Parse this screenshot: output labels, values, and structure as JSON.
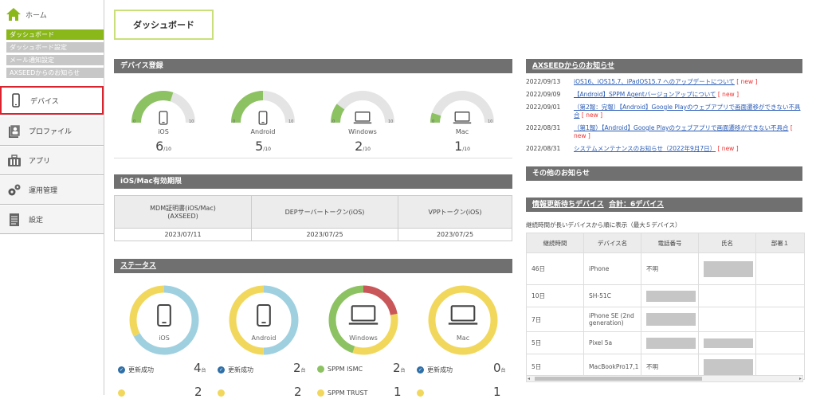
{
  "sidebar": {
    "home": "ホーム",
    "subnav": [
      "ダッシュボード",
      "ダッシュボード設定",
      "メール通知設定",
      "AXSEEDからのお知らせ"
    ],
    "menu": [
      "デバイス",
      "プロファイル",
      "アプリ",
      "運用管理",
      "設定"
    ]
  },
  "page_title": "ダッシュボード",
  "device_registration": {
    "title": "デバイス登録",
    "gauges": [
      {
        "label": "iOS",
        "count": "6",
        "max": "/10",
        "tick_min": "0",
        "tick_max": "10",
        "fill": 0.6
      },
      {
        "label": "Android",
        "count": "5",
        "max": "/10",
        "tick_min": "0",
        "tick_max": "10",
        "fill": 0.5
      },
      {
        "label": "Windows",
        "count": "2",
        "max": "/10",
        "tick_min": "0",
        "tick_max": "10",
        "fill": 0.2
      },
      {
        "label": "Mac",
        "count": "1",
        "max": "/10",
        "tick_min": "0",
        "tick_max": "10",
        "fill": 0.1
      }
    ]
  },
  "expiry": {
    "title": "iOS/Mac有効期限",
    "headers": [
      "MDM証明書(iOS/Mac)\n(AXSEED)",
      "DEPサーバートークン(iOS)",
      "VPPトークン(iOS)"
    ],
    "values": [
      "2023/07/11",
      "2023/07/25",
      "2023/07/25"
    ]
  },
  "status": {
    "title": "ステータス",
    "donuts": [
      {
        "label": "iOS",
        "line1": "更新成功",
        "count1": "4",
        "count2": "2",
        "unit": "台"
      },
      {
        "label": "Android",
        "line1": "更新成功",
        "count1": "2",
        "count2": "2",
        "unit": "台"
      },
      {
        "label": "Windows",
        "line1": "SPPM ISMC",
        "count1": "2",
        "line2": "SPPM TRUST",
        "count2": "1",
        "unit": "台"
      },
      {
        "label": "Mac",
        "line1": "更新成功",
        "count1": "0",
        "count2": "1",
        "unit": "台"
      }
    ]
  },
  "axseed_news": {
    "title": "AXSEEDからのお知らせ",
    "items": [
      {
        "date": "2022/09/13",
        "title": "iOS16、iOS15.7、iPadOS15.7 へのアップデートについて",
        "new": "[ new ]"
      },
      {
        "date": "2022/09/09",
        "title": "【Android】SPPM Agentバージョンアップについて",
        "new": "[ new ]"
      },
      {
        "date": "2022/09/01",
        "title": "（第2報：完報）【Android】Google Playのウェブアプリで画面遷移ができない不具合",
        "new": "[ new ]"
      },
      {
        "date": "2022/08/31",
        "title": "（第1報）【Android】Google Playのウェブアプリで画面遷移ができない不具合",
        "new": "[ new ]"
      },
      {
        "date": "2022/08/31",
        "title": "システムメンテナンスのお知らせ（2022年9月7日）",
        "new": "[ new ]"
      }
    ]
  },
  "other_news": {
    "title": "その他のお知らせ"
  },
  "pending": {
    "title": "情報更新待ちデバイス",
    "total": "合計：6デバイス",
    "note": "継続時間が長いデバイスから順に表示（最大５デバイス）",
    "headers": [
      "継続時間",
      "デバイス名",
      "電話番号",
      "氏名",
      "部署１"
    ],
    "rows": [
      {
        "duration": "46日",
        "device": "iPhone",
        "phone": "不明"
      },
      {
        "duration": "10日",
        "device": "SH-51C",
        "phone": ""
      },
      {
        "duration": "7日",
        "device": "iPhone SE (2nd generation)",
        "phone": ""
      },
      {
        "duration": "5日",
        "device": "Pixel 5a",
        "phone": ""
      },
      {
        "duration": "5日",
        "device": "MacBookPro17,1",
        "phone": "不明"
      }
    ]
  },
  "colors": {
    "accent": "#8ab71a",
    "gauge_fill": "#8dc262",
    "donut_blue": "#9fd0df",
    "donut_yellow": "#f1d85c",
    "donut_green": "#8dc262",
    "donut_red": "#c9575a",
    "header": "#707070"
  }
}
